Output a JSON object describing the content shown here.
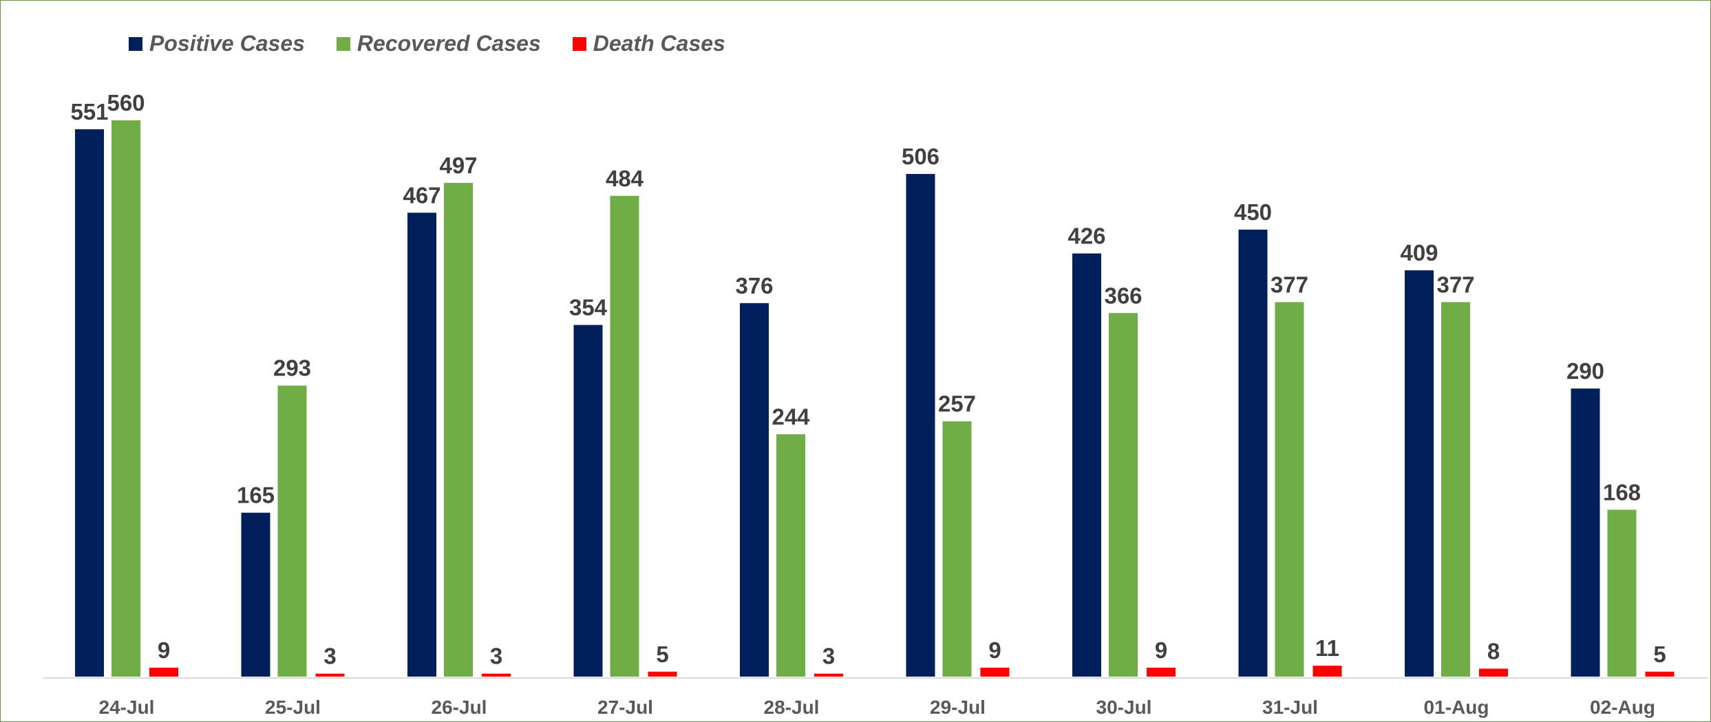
{
  "chart_data": {
    "type": "bar",
    "categories": [
      "24-Jul",
      "25-Jul",
      "26-Jul",
      "27-Jul",
      "28-Jul",
      "29-Jul",
      "30-Jul",
      "31-Jul",
      "01-Aug",
      "02-Aug"
    ],
    "series": [
      {
        "name": "Positive Cases",
        "color": "#001f5b",
        "values": [
          551,
          165,
          467,
          354,
          376,
          506,
          426,
          450,
          409,
          290
        ]
      },
      {
        "name": "Recovered Cases",
        "color": "#70ad47",
        "values": [
          560,
          293,
          497,
          484,
          244,
          257,
          366,
          377,
          377,
          168
        ]
      },
      {
        "name": "Death Cases",
        "color": "#ff0000",
        "values": [
          9,
          3,
          3,
          5,
          3,
          9,
          9,
          11,
          8,
          5
        ]
      }
    ],
    "ylim": [
      0,
      560
    ],
    "grid": false,
    "legend_position": "top-left",
    "data_labels": true
  }
}
